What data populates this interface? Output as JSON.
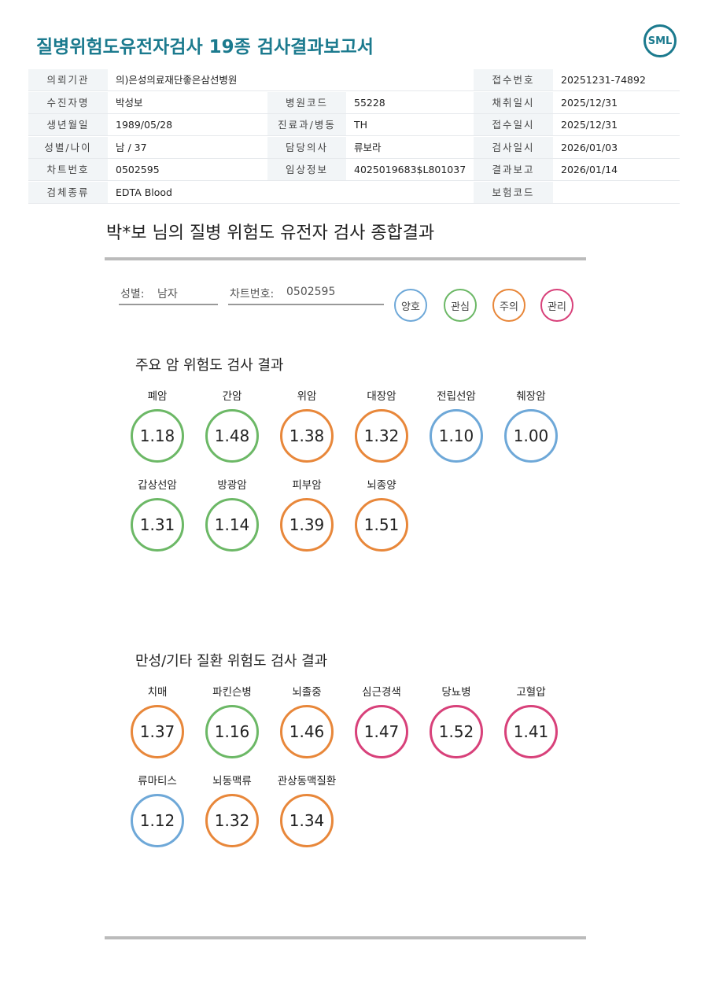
{
  "header": {
    "title": "질병위험도유전자검사 19종 검사결과보고서",
    "logo": "SML"
  },
  "info": {
    "rows": [
      [
        "의뢰기관",
        "의)은성의료재단좋은삼선병원",
        "접수번호",
        "20251231-74892"
      ],
      [
        "수진자명",
        "박성보",
        "병원코드",
        "55228",
        "채취일시",
        "2025/12/31"
      ],
      [
        "생년월일",
        "1989/05/28",
        "진료과/병동",
        "TH",
        "접수일시",
        "2025/12/31"
      ],
      [
        "성별/나이",
        "남 / 37",
        "담당의사",
        "류보라",
        "검사일시",
        "2026/01/03"
      ],
      [
        "차트번호",
        "0502595",
        "임상정보",
        "4025019683$L801037",
        "결과보고",
        "2026/01/14"
      ],
      [
        "검체종류",
        "EDTA Blood",
        "보험코드"
      ]
    ]
  },
  "summary": {
    "title": "박*보 님의 질병 위험도 유전자 검사 종합결과",
    "sex_label": "성별:",
    "sex": "남자",
    "chart_label": "차트번호:",
    "chart_no": "0502595",
    "legend": [
      {
        "label": "양호",
        "color": "#6ea8d8"
      },
      {
        "label": "관심",
        "color": "#6cb866"
      },
      {
        "label": "주의",
        "color": "#e8873a"
      },
      {
        "label": "관리",
        "color": "#d8417a"
      }
    ]
  },
  "sections": [
    {
      "title": "주요 암 위험도 검사 결과",
      "items": [
        {
          "name": "폐암",
          "value": "1.18",
          "color": "#6cb866"
        },
        {
          "name": "간암",
          "value": "1.48",
          "color": "#6cb866"
        },
        {
          "name": "위암",
          "value": "1.38",
          "color": "#e8873a"
        },
        {
          "name": "대장암",
          "value": "1.32",
          "color": "#e8873a"
        },
        {
          "name": "전립선암",
          "value": "1.10",
          "color": "#6ea8d8"
        },
        {
          "name": "췌장암",
          "value": "1.00",
          "color": "#6ea8d8"
        },
        {
          "name": "갑상선암",
          "value": "1.31",
          "color": "#6cb866"
        },
        {
          "name": "방광암",
          "value": "1.14",
          "color": "#6cb866"
        },
        {
          "name": "피부암",
          "value": "1.39",
          "color": "#e8873a"
        },
        {
          "name": "뇌종양",
          "value": "1.51",
          "color": "#e8873a"
        }
      ]
    },
    {
      "title": "만성/기타 질환 위험도 검사 결과",
      "items": [
        {
          "name": "치매",
          "value": "1.37",
          "color": "#e8873a"
        },
        {
          "name": "파킨슨병",
          "value": "1.16",
          "color": "#6cb866"
        },
        {
          "name": "뇌졸중",
          "value": "1.46",
          "color": "#e8873a"
        },
        {
          "name": "심근경색",
          "value": "1.47",
          "color": "#d8417a"
        },
        {
          "name": "당뇨병",
          "value": "1.52",
          "color": "#d8417a"
        },
        {
          "name": "고혈압",
          "value": "1.41",
          "color": "#d8417a"
        },
        {
          "name": "류마티스",
          "value": "1.12",
          "color": "#6ea8d8"
        },
        {
          "name": "뇌동맥류",
          "value": "1.32",
          "color": "#e8873a"
        },
        {
          "name": "관상동맥질환",
          "value": "1.34",
          "color": "#e8873a"
        }
      ]
    }
  ]
}
